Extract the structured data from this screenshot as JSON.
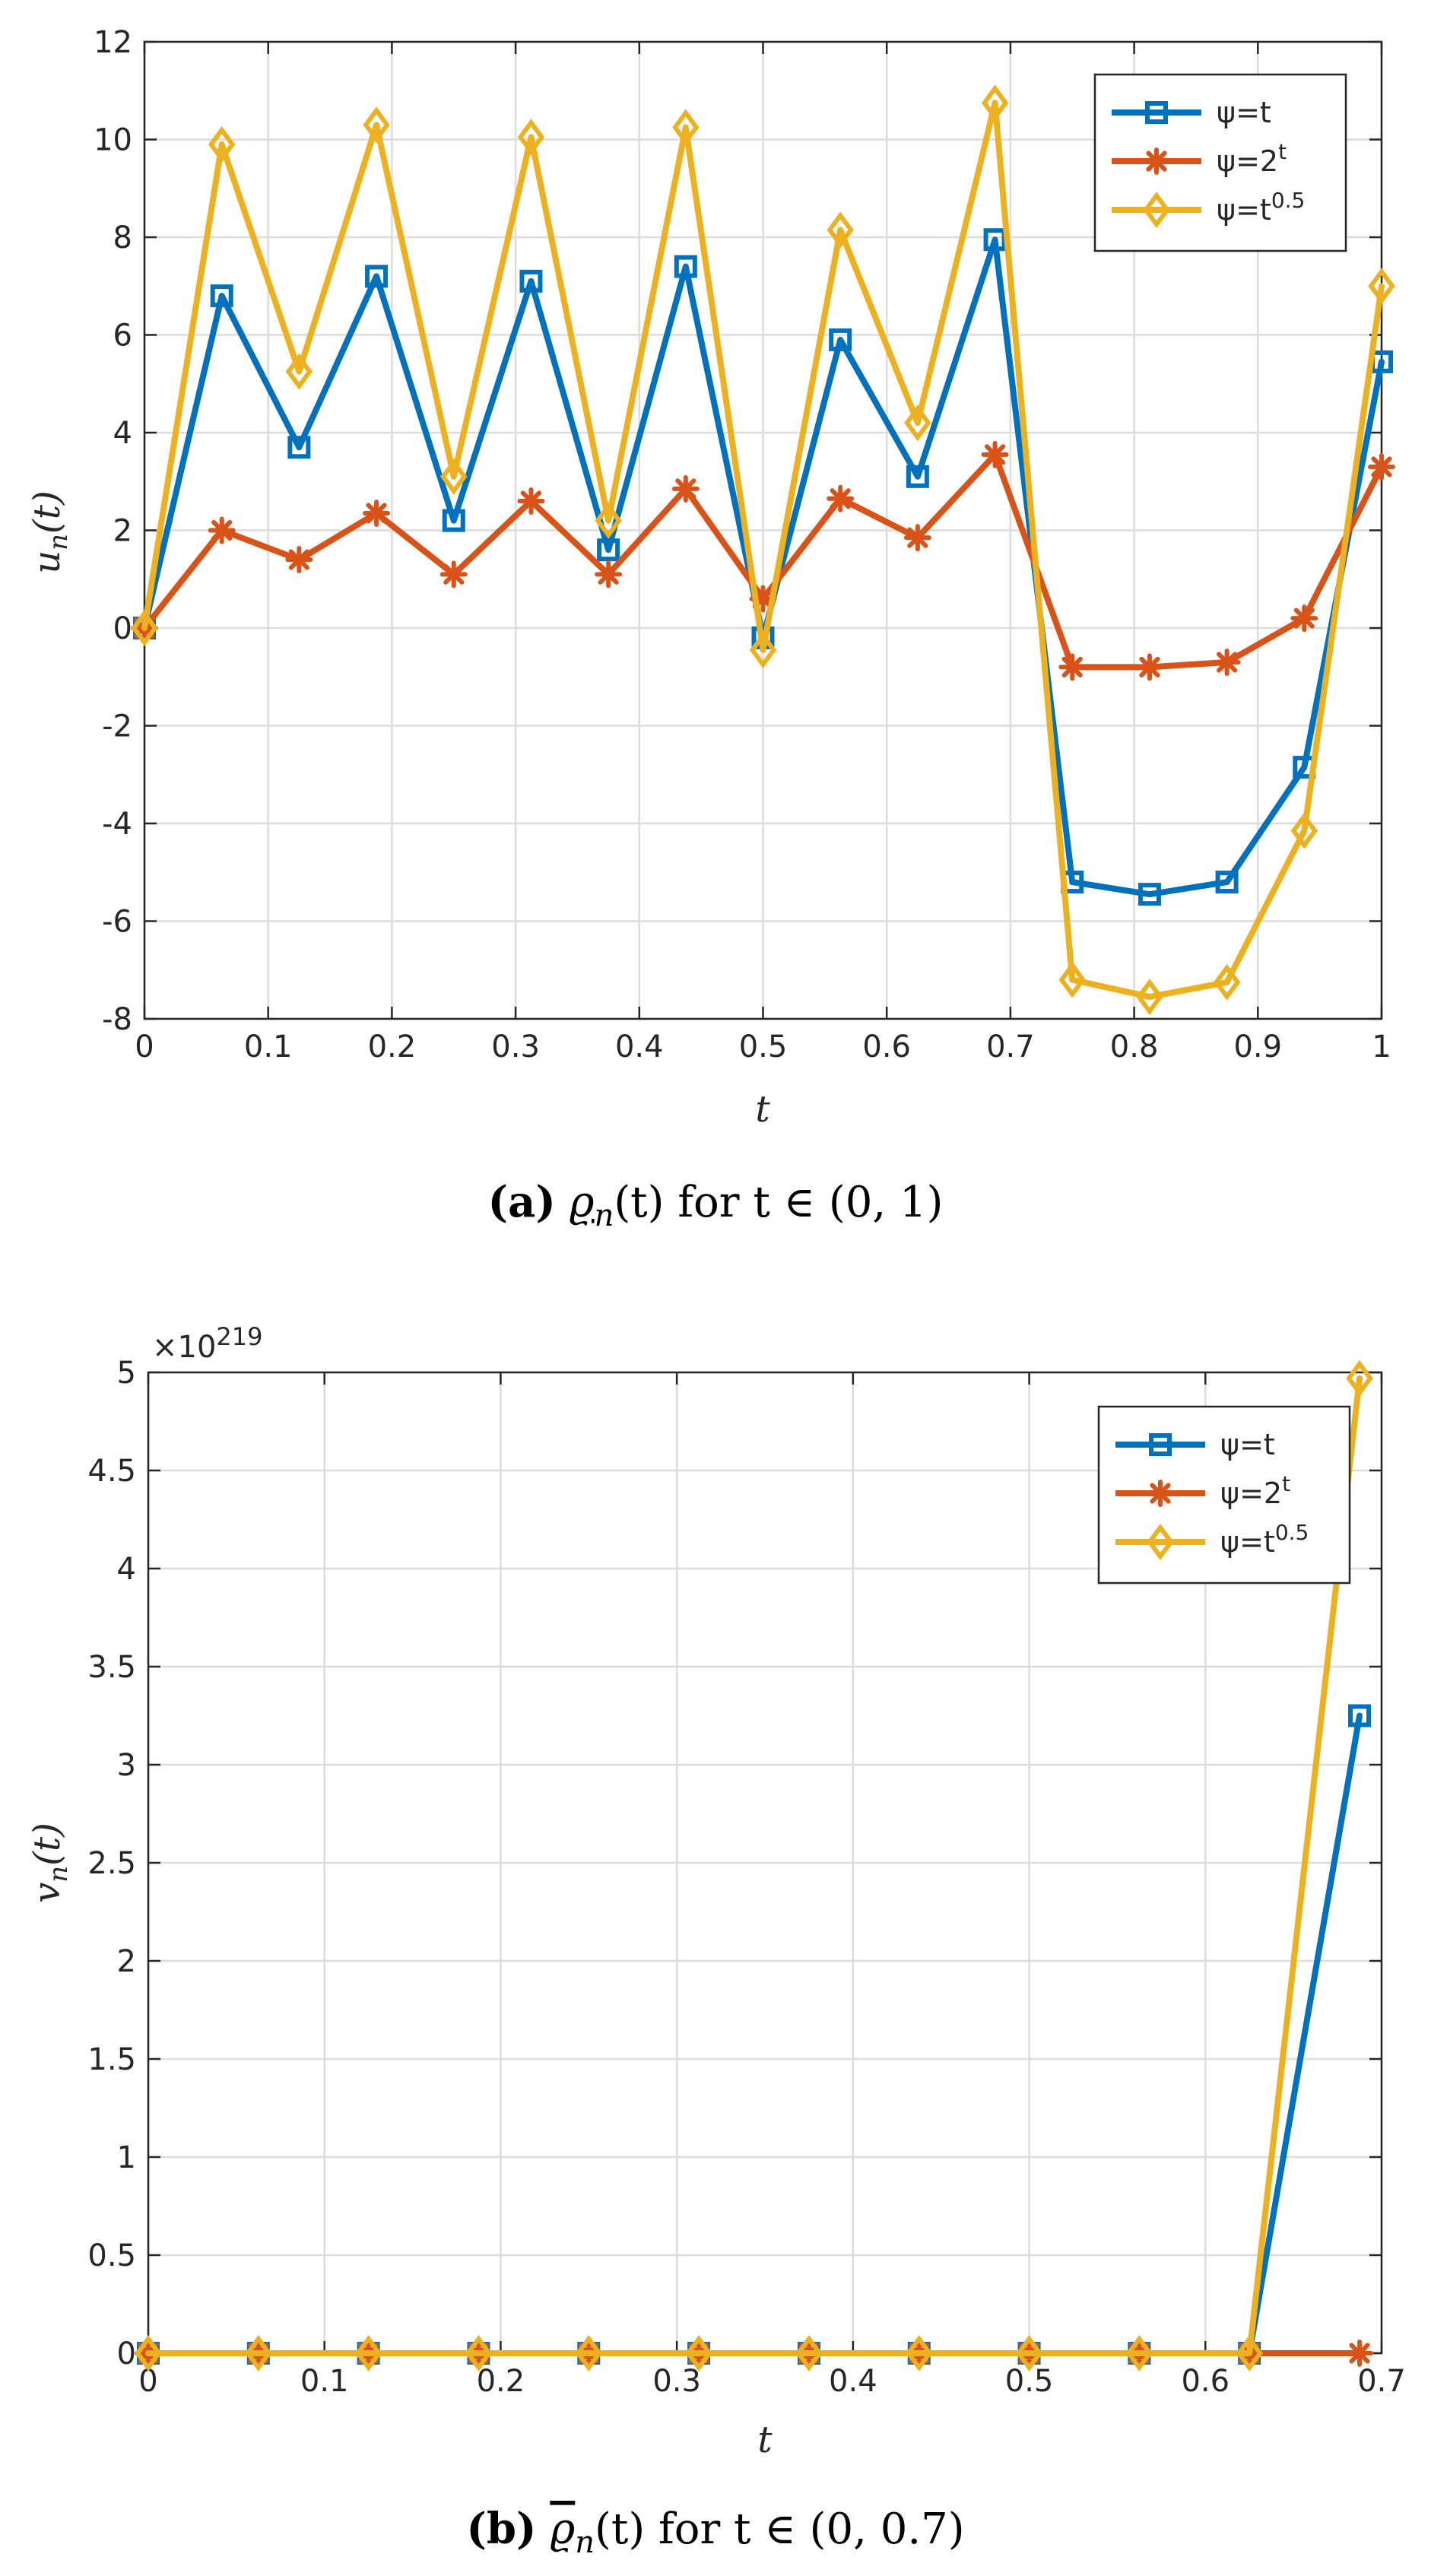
{
  "colors": {
    "blue": "#0072BD",
    "orange": "#D95319",
    "yellow": "#EDB120"
  },
  "chart_data": [
    {
      "type": "line",
      "x": [
        0,
        0.0625,
        0.125,
        0.1875,
        0.25,
        0.3125,
        0.375,
        0.4375,
        0.5,
        0.5625,
        0.625,
        0.6875,
        0.75,
        0.8125,
        0.875,
        0.9375,
        1.0
      ],
      "series": [
        {
          "name": "ψ=t",
          "label_base": "ψ=t",
          "label_sup": "",
          "color": "#0072BD",
          "marker": "square",
          "values": [
            0,
            6.8,
            3.7,
            7.2,
            2.2,
            7.1,
            1.6,
            7.4,
            -0.2,
            5.9,
            3.1,
            7.95,
            -5.2,
            -5.45,
            -5.2,
            -2.85,
            5.45
          ]
        },
        {
          "name": "ψ=2^t",
          "label_base": "ψ=2",
          "label_sup": "t",
          "color": "#D95319",
          "marker": "asterisk",
          "values": [
            0,
            2.0,
            1.4,
            2.35,
            1.1,
            2.6,
            1.1,
            2.85,
            0.6,
            2.65,
            1.85,
            3.55,
            -0.8,
            -0.8,
            -0.7,
            0.2,
            3.3
          ]
        },
        {
          "name": "ψ=t^0.5",
          "label_base": "ψ=t",
          "label_sup": "0.5",
          "color": "#EDB120",
          "marker": "diamond",
          "values": [
            0,
            9.9,
            5.25,
            10.3,
            3.1,
            10.05,
            2.2,
            10.25,
            -0.45,
            8.15,
            4.2,
            10.75,
            -7.2,
            -7.55,
            -7.25,
            -4.15,
            7.0
          ]
        }
      ],
      "xlabel": "t",
      "ylabel": "u_n(t)",
      "ylabel_base": "u",
      "ylabel_sub": "n",
      "ylabel_rest": "(t)",
      "xlim": [
        0,
        1
      ],
      "ylim": [
        -8,
        12
      ],
      "xticks": [
        0,
        0.1,
        0.2,
        0.3,
        0.4,
        0.5,
        0.6,
        0.7,
        0.8,
        0.9,
        1
      ],
      "xtick_labels": [
        "0",
        "0.1",
        "0.2",
        "0.3",
        "0.4",
        "0.5",
        "0.6",
        "0.7",
        "0.8",
        "0.9",
        "1"
      ],
      "yticks": [
        -8,
        -6,
        -4,
        -2,
        0,
        2,
        4,
        6,
        8,
        10,
        12
      ],
      "ytick_labels": [
        "-8",
        "-6",
        "-4",
        "-2",
        "0",
        "2",
        "4",
        "6",
        "8",
        "10",
        "12"
      ],
      "grid": true,
      "legend_position": "top-right",
      "exponent_label": "",
      "caption_tag": "(a)",
      "caption_symbol": "ϱ",
      "caption_sub": "n",
      "caption_text": "(t) for t ∈ (0, 1)"
    },
    {
      "type": "line",
      "x": [
        0,
        0.0625,
        0.125,
        0.1875,
        0.25,
        0.3125,
        0.375,
        0.4375,
        0.5,
        0.5625,
        0.625,
        0.6875
      ],
      "series": [
        {
          "name": "ψ=t",
          "label_base": "ψ=t",
          "label_sup": "",
          "color": "#0072BD",
          "marker": "square",
          "values": [
            0,
            0,
            0,
            0,
            0,
            0,
            0,
            0,
            0,
            0,
            0,
            3.25
          ]
        },
        {
          "name": "ψ=2^t",
          "label_base": "ψ=2",
          "label_sup": "t",
          "color": "#D95319",
          "marker": "asterisk",
          "values": [
            0,
            0,
            0,
            0,
            0,
            0,
            0,
            0,
            0,
            0,
            0,
            0
          ]
        },
        {
          "name": "ψ=t^0.5",
          "label_base": "ψ=t",
          "label_sup": "0.5",
          "color": "#EDB120",
          "marker": "diamond",
          "values": [
            0,
            0,
            0,
            0,
            0,
            0,
            0,
            0,
            0,
            0,
            0,
            4.97
          ]
        }
      ],
      "xlabel": "t",
      "ylabel": "v_n(t)",
      "ylabel_base": "v",
      "ylabel_sub": "n",
      "ylabel_rest": "(t)",
      "xlim": [
        0,
        0.7
      ],
      "ylim": [
        0,
        5
      ],
      "xticks": [
        0,
        0.1,
        0.2,
        0.3,
        0.4,
        0.5,
        0.6,
        0.7
      ],
      "xtick_labels": [
        "0",
        "0.1",
        "0.2",
        "0.3",
        "0.4",
        "0.5",
        "0.6",
        "0.7"
      ],
      "yticks": [
        0,
        0.5,
        1,
        1.5,
        2,
        2.5,
        3,
        3.5,
        4,
        4.5,
        5
      ],
      "ytick_labels": [
        "0",
        "0.5",
        "1",
        "1.5",
        "2",
        "2.5",
        "3",
        "3.5",
        "4",
        "4.5",
        "5"
      ],
      "grid": true,
      "legend_position": "top-right",
      "exponent_base": "×10",
      "exponent_power": "219",
      "caption_tag": "(b)",
      "caption_symbol": "ϱ",
      "caption_sub": "n",
      "caption_text": "(t) for t ∈ (0, 0.7)"
    }
  ]
}
